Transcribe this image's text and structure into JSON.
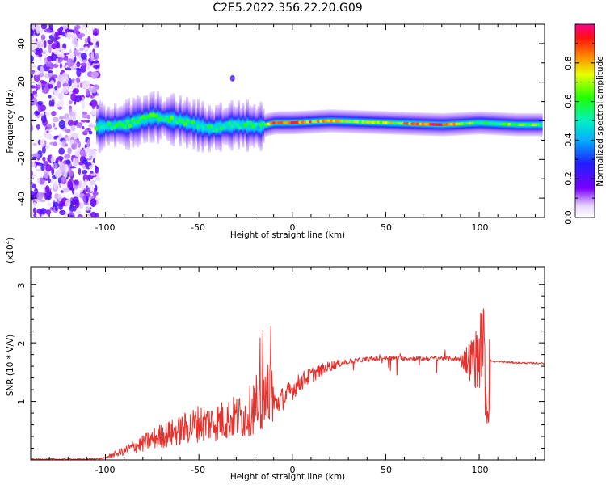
{
  "title": "C2E5.2022.356.22.20.G09",
  "colorbar": {
    "label": "Normalized spectral amplitude",
    "ticks": [
      "0.0",
      "0.2",
      "0.4",
      "0.6",
      "0.8"
    ]
  },
  "top_panel": {
    "xlabel": "Height of straight line (km)",
    "ylabel": "Frequency (Hz)",
    "xticks": [
      "-100",
      "-50",
      "0",
      "50",
      "100"
    ],
    "yticks": [
      "40",
      "20",
      "0",
      "-20",
      "-40"
    ]
  },
  "bottom_panel": {
    "xlabel": "Height of straight line (km)",
    "ylabel": "SNR (10 * V/V)",
    "scale_label": "(x10",
    "scale_exp": "4",
    "scale_close": ")",
    "xticks": [
      "-100",
      "-50",
      "0",
      "50",
      "100"
    ],
    "yticks": [
      "1",
      "2",
      "3"
    ]
  },
  "chart_data": [
    {
      "type": "heatmap",
      "title": "C2E5.2022.356.22.20.G09",
      "xlabel": "Height of straight line (km)",
      "ylabel": "Frequency (Hz)",
      "xlim": [
        -140,
        135
      ],
      "ylim": [
        -50,
        50
      ],
      "colorbar_label": "Normalized spectral amplitude",
      "colorbar_range": [
        0,
        1
      ],
      "colormap": "rainbow (purple-blue-cyan-green-yellow-red-magenta)",
      "description_points": {
        "noise_region_x": [
          -140,
          -110
        ],
        "signal_band": [
          {
            "x": -105,
            "freq": -3,
            "amp": 0.55
          },
          {
            "x": -90,
            "freq": -2,
            "amp": 0.6
          },
          {
            "x": -75,
            "freq": 2,
            "amp": 0.6
          },
          {
            "x": -60,
            "freq": 0,
            "amp": 0.55
          },
          {
            "x": -45,
            "freq": -4,
            "amp": 0.5
          },
          {
            "x": -30,
            "freq": -2,
            "amp": 0.55
          },
          {
            "x": -18,
            "freq": -3,
            "amp": 0.5
          },
          {
            "x": -10,
            "freq": -1,
            "amp": 0.85
          },
          {
            "x": 0,
            "freq": -1,
            "amp": 0.9
          },
          {
            "x": 20,
            "freq": 0,
            "amp": 0.75
          },
          {
            "x": 50,
            "freq": -1,
            "amp": 0.7
          },
          {
            "x": 80,
            "freq": -2,
            "amp": 0.95
          },
          {
            "x": 100,
            "freq": -1,
            "amp": 0.5
          },
          {
            "x": 120,
            "freq": -2,
            "amp": 0.65
          },
          {
            "x": 133,
            "freq": -2,
            "amp": 0.6
          }
        ],
        "spur": {
          "x": -32,
          "freq": 22
        }
      }
    },
    {
      "type": "line",
      "xlabel": "Height of straight line (km)",
      "ylabel": "SNR (10 * V/V)",
      "xlim": [
        -140,
        135
      ],
      "ylim": [
        0,
        3.3
      ],
      "y_scale": "x10^4",
      "series": [
        {
          "color": "#e8302c",
          "x": [
            -140,
            -110,
            -100,
            -95,
            -90,
            -85,
            -80,
            -75,
            -70,
            -65,
            -60,
            -55,
            -50,
            -45,
            -40,
            -35,
            -30,
            -25,
            -20,
            -15,
            -10,
            -5,
            0,
            5,
            10,
            15,
            20,
            25,
            30,
            35,
            40,
            45,
            50,
            55,
            60,
            65,
            70,
            75,
            80,
            85,
            90,
            95,
            100,
            102,
            104,
            106,
            108,
            110,
            120,
            135
          ],
          "y": [
            0.01,
            0.01,
            0.03,
            0.08,
            0.12,
            0.18,
            0.22,
            0.28,
            0.33,
            0.36,
            0.4,
            0.45,
            0.5,
            0.5,
            0.52,
            0.55,
            0.58,
            0.6,
            0.75,
            0.85,
            0.95,
            1.05,
            1.2,
            1.35,
            1.45,
            1.52,
            1.6,
            1.65,
            1.68,
            1.7,
            1.72,
            1.73,
            1.74,
            1.74,
            1.74,
            1.73,
            1.73,
            1.74,
            1.74,
            1.73,
            1.72,
            1.7,
            1.75,
            2.2,
            1.0,
            1.7,
            1.68,
            1.68,
            1.66,
            1.65
          ]
        }
      ]
    }
  ]
}
